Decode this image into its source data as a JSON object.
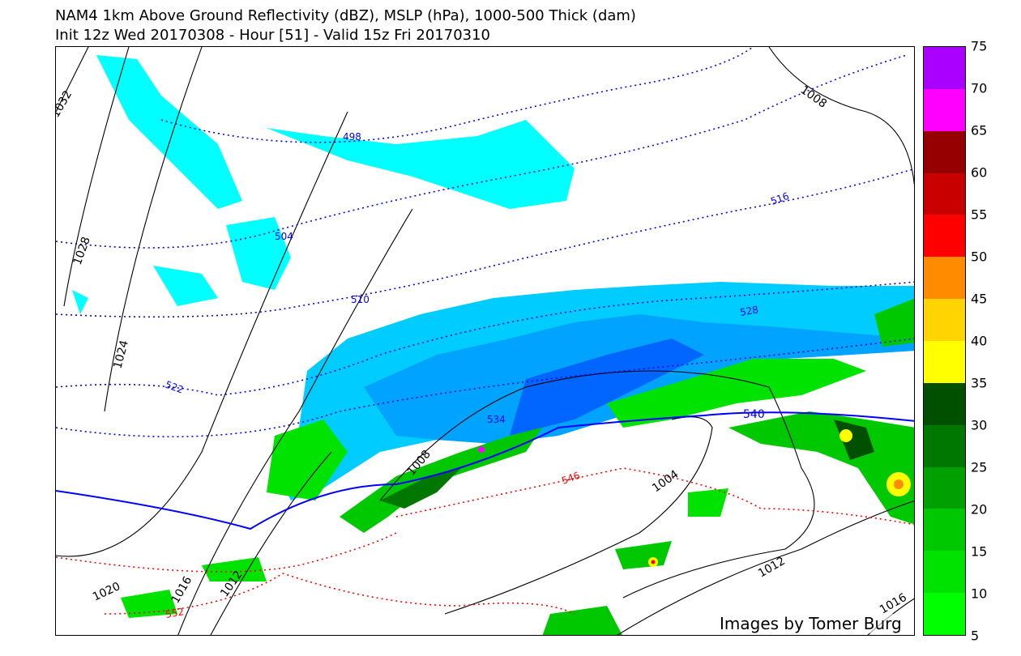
{
  "title_line1": "NAM4 1km Above Ground Reflectivity (dBZ), MSLP (hPa), 1000-500 Thick (dam)",
  "title_line2": "Init 12z Wed 20170308 - Hour [51] - Valid 15z Fri 20170310",
  "credit": "Images by Tomer Burg",
  "colorbar": {
    "ticks": [
      "5",
      "10",
      "15",
      "20",
      "25",
      "30",
      "35",
      "40",
      "45",
      "50",
      "55",
      "60",
      "65",
      "70",
      "75"
    ],
    "colors": [
      "#00ff00",
      "#00e300",
      "#00c800",
      "#00a000",
      "#007800",
      "#005000",
      "#ffff00",
      "#ffd400",
      "#ff8c00",
      "#ff0000",
      "#c80000",
      "#960000",
      "#ff00ff",
      "#aa00ff"
    ]
  },
  "mslp_labels": [
    "1032",
    "1028",
    "1024",
    "1020",
    "1016",
    "1012",
    "1008",
    "1008",
    "1004",
    "1012",
    "1016"
  ],
  "thickness_labels": [
    "498",
    "504",
    "510",
    "516",
    "522",
    "528",
    "534",
    "540",
    "546",
    "552"
  ],
  "colors": {
    "mslp": "#000000",
    "thickness_cold": "#0000ff",
    "thickness_540": "#0000ff",
    "thickness_warm": "#ff0000",
    "snow_light": "#00ffff",
    "snow_mod": "#00ccff",
    "snow_heavy": "#0099ff"
  }
}
